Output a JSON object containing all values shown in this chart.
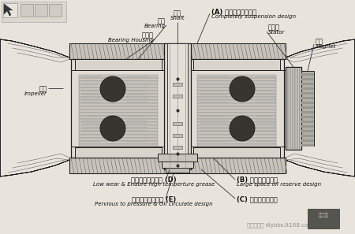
{
  "bg_color": "#e8e4dc",
  "inner_bg": "#f0ece4",
  "line_color": "#222222",
  "hatch_color": "#555555",
  "dark_fill": "#404040",
  "mid_fill": "#888880",
  "light_fill": "#c8c4bc",
  "white_fill": "#f4f0e8",
  "labels": {
    "shaft_cn": "轴心",
    "shaft_en": "Shaft",
    "bearing_cn": "轴承",
    "bearing_en": "Bearing",
    "bearing_housing_cn": "轴承座",
    "bearing_housing_en": "Bearing Housing",
    "impeller_cn": "扇葉",
    "impeller_en": "Impeller",
    "stator_cn": "矽鋼片",
    "stator_en": "Stator",
    "magnet_cn": "磁條",
    "magnet_en": "Magnet",
    "A_cn": "(A) 完全磁力懸浮設計",
    "A_en": "Completely suspension design",
    "B_cn": "(B) 大空間儲油設計",
    "B_en": "Large space oil reserve design",
    "C_cn": "(C) 密閉式保油設計",
    "D_cn": "低磨耗耐高溫油脂 (D)",
    "D_en": "Low wear & Endure high temperture grease",
    "E_cn": "透壓式油循環設計 (E)",
    "E_en": "Pervious to pressure & Oil circulate design",
    "watermark": "图片上传于 diybbs.it168.com"
  }
}
